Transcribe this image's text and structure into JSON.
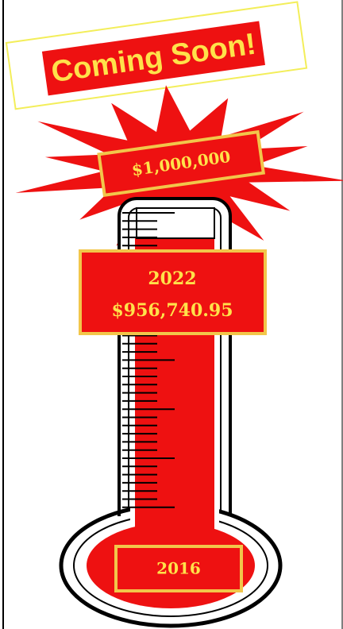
{
  "banner": {
    "text": "Coming Soon!"
  },
  "goal": {
    "amount": "$1,000,000"
  },
  "current": {
    "year": "2022",
    "amount": "$956,740.95"
  },
  "start": {
    "year": "2016"
  }
}
